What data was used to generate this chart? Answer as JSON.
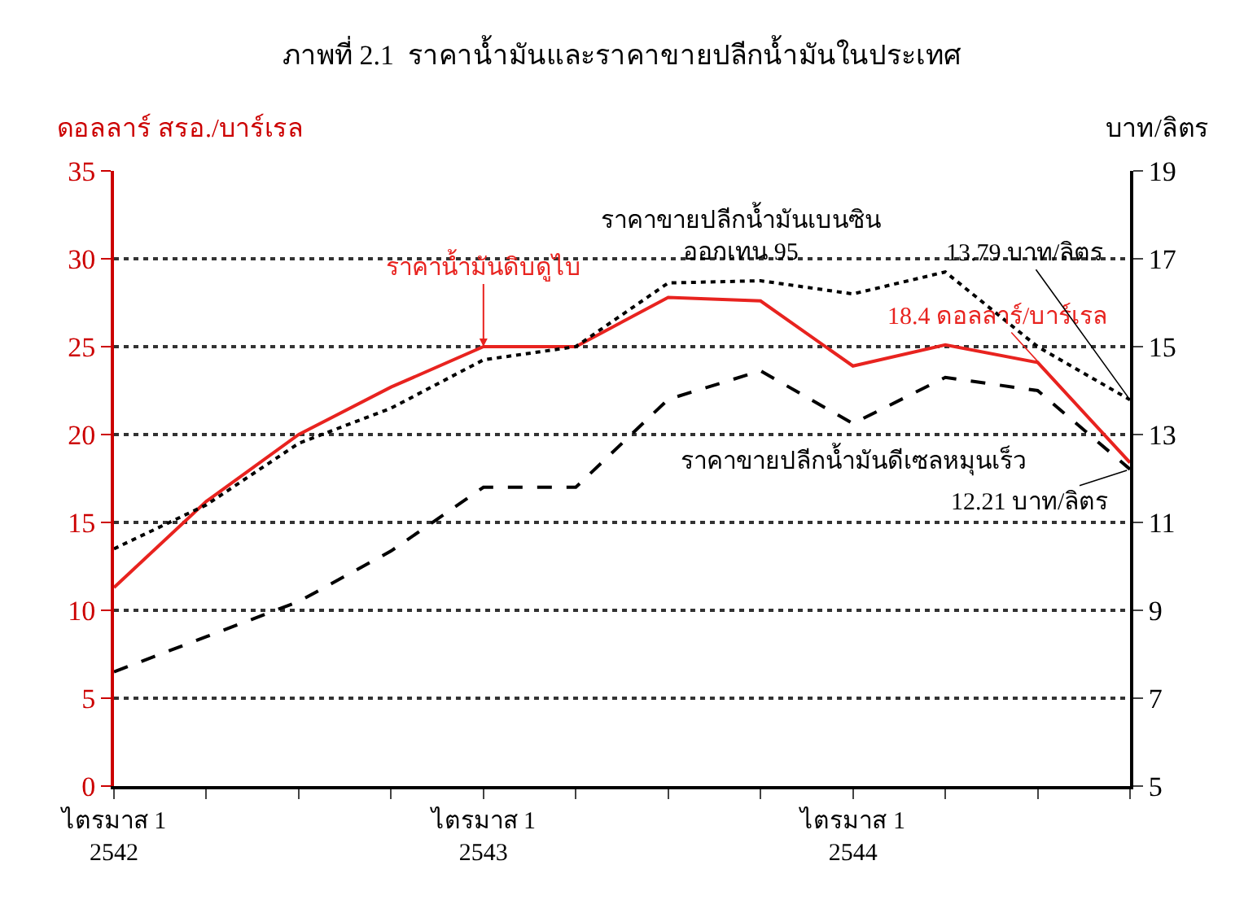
{
  "chart_data": {
    "type": "line",
    "title": "ภาพที่ 2.1  ราคาน้ำมันและราคาขายปลีกน้ำมันในประเทศ",
    "ylabel": "ดอลลาร์ สรอ./บาร์เรล",
    "y2label": "บาท/ลิตร",
    "categories": [
      "ไตรมาส 1\n2542",
      null,
      null,
      null,
      "ไตรมาส 1\n2543",
      null,
      null,
      null,
      "ไตรมาส 1\n2544",
      null,
      null,
      null
    ],
    "series": [
      {
        "name": "ราคาน้ำมันดิบดูไบ",
        "color": "#e8231f",
        "line_style": "solid",
        "values": [
          11.3,
          16.2,
          20,
          22.7,
          25,
          25,
          27.8,
          27.6,
          23.9,
          25.1,
          24.1,
          18.4
        ],
        "value_labels": [
          null,
          null,
          null,
          null,
          null,
          null,
          null,
          null,
          null,
          null,
          null,
          "18.4 ดอลลาร์/บาร์เรล"
        ]
      },
      {
        "name": "ราคาขายปลีกน้ำมันเบนซิน\nออกเทน 95",
        "color": "#000000",
        "line_style": "dotted",
        "axis": "y2",
        "values": [
          10.4,
          11.4,
          12.8,
          13.6,
          14.7,
          15,
          16.45,
          16.5,
          16.2,
          16.7,
          15,
          13.79
        ],
        "value_labels": [
          null,
          null,
          null,
          null,
          null,
          null,
          null,
          null,
          null,
          null,
          null,
          "13.79 บาท/ลิตร"
        ]
      },
      {
        "name": "ราคาขายปลีกน้ำมันดีเซลหมุนเร็ว",
        "color": "#000000",
        "line_style": "dashed",
        "axis": "y2",
        "values": [
          7.6,
          8.4,
          9.2,
          10.35,
          11.8,
          11.8,
          13.8,
          14.45,
          13.25,
          14.3,
          14,
          12.21
        ],
        "value_labels": [
          null,
          null,
          null,
          null,
          null,
          null,
          null,
          null,
          null,
          null,
          null,
          "12.21 บาท/ลิตร"
        ]
      }
    ],
    "ylim": [
      0,
      35
    ],
    "yticks": [
      0,
      5,
      10,
      15,
      20,
      25,
      30,
      35
    ],
    "y2lim": [
      5,
      19
    ],
    "y2ticks": [
      5,
      7,
      9,
      11,
      13,
      15,
      17,
      19
    ],
    "grid": "y",
    "legend": false,
    "marker": "none"
  }
}
